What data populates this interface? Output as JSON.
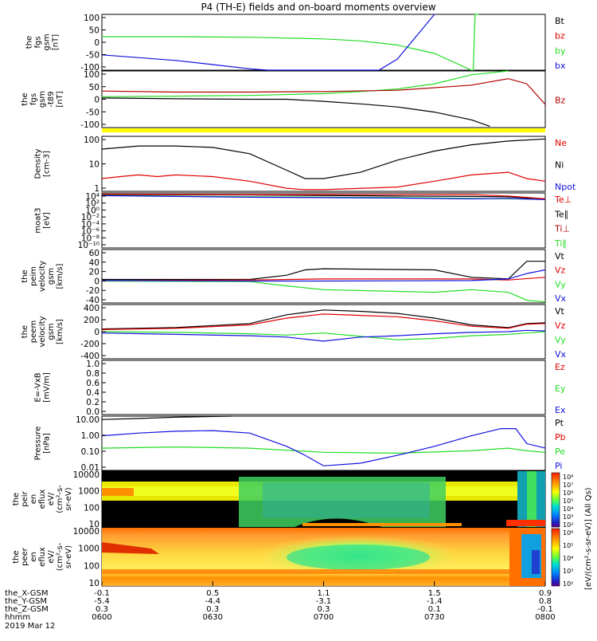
{
  "title": "P4 (TH-E) fields and on-board moments overview",
  "colors": {
    "black": "#000000",
    "red": "#e00000",
    "green": "#22dd22",
    "blue": "#1010e0",
    "darkred": "#b00000",
    "yellow": "#ffff00"
  },
  "chart_data": {
    "type": "line",
    "time_ticks": [
      "0600",
      "0630",
      "0700",
      "0730",
      "0800"
    ],
    "x_range_minutes": [
      0,
      120
    ],
    "panels": [
      {
        "id": "fgs",
        "ylabel": [
          "the",
          "fgs",
          "gsm",
          "[nT]"
        ],
        "yticks": [
          "100",
          "50",
          "0",
          "-50",
          "-100"
        ],
        "ylim": [
          -100,
          100
        ],
        "legend": [
          {
            "t": "Bt",
            "c": "black"
          },
          {
            "t": "bz",
            "c": "red"
          },
          {
            "t": "by",
            "c": "green"
          },
          {
            "t": "bx",
            "c": "blue"
          }
        ],
        "series": [
          {
            "name": "by",
            "color": "green",
            "x": [
              0,
              20,
              40,
              60,
              70,
              80,
              90,
              100,
              100.5,
              101,
              102
            ],
            "y": [
              20,
              20,
              18,
              12,
              5,
              -10,
              -40,
              -100,
              -100,
              100,
              100
            ]
          },
          {
            "name": "bx",
            "color": "blue",
            "x": [
              0,
              10,
              20,
              30,
              40,
              45,
              50,
              75,
              80,
              85,
              90
            ],
            "y": [
              -45,
              -55,
              -65,
              -80,
              -95,
              -100,
              -100,
              -100,
              -60,
              20,
              100
            ]
          }
        ]
      },
      {
        "id": "fgs_s",
        "ylabel": [
          "the",
          "fgs",
          "gsm",
          "-t89",
          "[nT]"
        ],
        "yticks": [
          "100",
          "50",
          "0",
          "-50",
          "-100"
        ],
        "ylim": [
          -120,
          100
        ],
        "legend": [
          {
            "t": "Bz",
            "c": "darkred"
          }
        ],
        "series": [
          {
            "name": "Bx",
            "color": "black",
            "x": [
              0,
              20,
              40,
              50,
              60,
              70,
              80,
              90,
              100,
              105
            ],
            "y": [
              -5,
              -8,
              -10,
              -10,
              -18,
              -28,
              -40,
              -60,
              -90,
              -115
            ]
          },
          {
            "name": "By",
            "color": "green",
            "x": [
              0,
              20,
              40,
              60,
              70,
              80,
              90,
              100,
              110
            ],
            "y": [
              0,
              2,
              5,
              12,
              20,
              30,
              50,
              85,
              100
            ]
          },
          {
            "name": "Bz",
            "color": "darkred",
            "x": [
              0,
              20,
              40,
              60,
              80,
              100,
              110,
              115,
              120
            ],
            "y": [
              22,
              18,
              18,
              20,
              25,
              45,
              70,
              50,
              -30
            ]
          }
        ]
      },
      {
        "id": "density",
        "ylabel": [
          "Density",
          "[cm-3]"
        ],
        "yticks": [
          "100",
          "10",
          "1"
        ],
        "log": true,
        "ylim": [
          0.5,
          200
        ],
        "legend": [
          {
            "t": "Ne",
            "c": "red"
          },
          {
            "t": "Ni",
            "c": "black"
          },
          {
            "t": "Npot",
            "c": "blue"
          }
        ],
        "series": [
          {
            "name": "Ni",
            "color": "black",
            "x": [
              0,
              10,
              20,
              30,
              40,
              50,
              55,
              60,
              70,
              80,
              90,
              100,
              110,
              120
            ],
            "y": [
              50,
              70,
              70,
              60,
              30,
              5,
              2,
              2,
              4,
              15,
              40,
              80,
              120,
              150
            ]
          },
          {
            "name": "Ne",
            "color": "red",
            "x": [
              0,
              5,
              10,
              15,
              20,
              30,
              40,
              50,
              55,
              60,
              80,
              90,
              100,
              110,
              115,
              120
            ],
            "y": [
              2,
              2.5,
              3,
              2.5,
              3,
              2.5,
              1.5,
              0.7,
              0.6,
              0.6,
              0.8,
              1.5,
              3,
              4,
              2,
              1.5
            ]
          }
        ]
      },
      {
        "id": "moat3",
        "ylabel": [
          "moat3",
          "[eV]"
        ],
        "yticks": [
          "10⁴",
          "10²",
          "10⁰",
          "10⁻²",
          "10⁻⁴",
          "10⁻⁶",
          "10⁻⁸",
          "10⁻¹⁰"
        ],
        "ylim": [
          -10,
          4
        ],
        "legend": [
          {
            "t": "Te⊥",
            "c": "red"
          },
          {
            "t": "Te∥",
            "c": "black"
          },
          {
            "t": "Ti⊥",
            "c": "darkred"
          },
          {
            "t": "Ti∥",
            "c": "green"
          }
        ],
        "series": [
          {
            "name": "Ti",
            "color": "black",
            "x": [
              0,
              40,
              80,
              100,
              110,
              120
            ],
            "y": [
              3.6,
              3.5,
              3.2,
              3.1,
              3.0,
              2.4
            ]
          },
          {
            "name": "Te",
            "color": "green",
            "x": [
              0,
              40,
              80,
              100,
              110,
              120
            ],
            "y": [
              3.4,
              3.0,
              2.8,
              2.6,
              2.5,
              2.4
            ]
          },
          {
            "name": "Tb",
            "color": "blue",
            "x": [
              0,
              40,
              80,
              100,
              110,
              120
            ],
            "y": [
              3.3,
              2.9,
              2.7,
              2.5,
              2.6,
              2.3
            ]
          },
          {
            "name": "Tr",
            "color": "red",
            "x": [
              0,
              40,
              80,
              100,
              110,
              120
            ],
            "y": [
              3.7,
              3.6,
              3.6,
              3.6,
              3.2,
              2.5
            ]
          }
        ]
      },
      {
        "id": "peim",
        "ylabel": [
          "the",
          "peim",
          "velocity",
          "gsm",
          "[km/s]"
        ],
        "yticks": [
          "60",
          "40",
          "20",
          "0",
          "-20",
          "-40"
        ],
        "ylim": [
          -40,
          60
        ],
        "legend": [
          {
            "t": "Vt",
            "c": "black"
          },
          {
            "t": "Vz",
            "c": "red"
          },
          {
            "t": "Vy",
            "c": "green"
          },
          {
            "t": "Vx",
            "c": "blue"
          }
        ],
        "series": [
          {
            "name": "Vt",
            "color": "black",
            "x": [
              0,
              40,
              50,
              55,
              60,
              90,
              100,
              110,
              115,
              120
            ],
            "y": [
              4,
              4,
              12,
              22,
              24,
              22,
              8,
              5,
              38,
              38
            ]
          },
          {
            "name": "Vz",
            "color": "red",
            "x": [
              0,
              40,
              60,
              100,
              110,
              120
            ],
            "y": [
              2,
              3,
              5,
              5,
              3,
              8
            ]
          },
          {
            "name": "Vy",
            "color": "green",
            "x": [
              0,
              40,
              50,
              60,
              90,
              100,
              110,
              115,
              120
            ],
            "y": [
              1,
              0,
              -8,
              -15,
              -20,
              -15,
              -20,
              -35,
              -38
            ]
          },
          {
            "name": "Vx",
            "color": "blue",
            "x": [
              0,
              40,
              60,
              100,
              110,
              115,
              120
            ],
            "y": [
              2,
              1,
              1,
              2,
              5,
              15,
              22
            ]
          }
        ]
      },
      {
        "id": "peem",
        "ylabel": [
          "the",
          "peem",
          "velocity",
          "gsm",
          "[km/s]"
        ],
        "yticks": [
          "400",
          "200",
          "0",
          "-200",
          "-400"
        ],
        "ylim": [
          -400,
          400
        ],
        "legend": [
          {
            "t": "Vt",
            "c": "black"
          },
          {
            "t": "Vz",
            "c": "red"
          },
          {
            "t": "Vy",
            "c": "green"
          },
          {
            "t": "Vx",
            "c": "blue"
          }
        ],
        "series": [
          {
            "name": "Vt",
            "color": "black",
            "x": [
              0,
              20,
              40,
              50,
              60,
              70,
              80,
              90,
              100,
              110,
              115,
              120
            ],
            "y": [
              40,
              60,
              120,
              250,
              320,
              300,
              270,
              200,
              100,
              60,
              120,
              130
            ]
          },
          {
            "name": "Vz",
            "color": "red",
            "x": [
              0,
              20,
              40,
              50,
              60,
              70,
              80,
              90,
              100,
              110,
              115,
              120
            ],
            "y": [
              30,
              50,
              100,
              200,
              260,
              240,
              220,
              160,
              80,
              50,
              110,
              120
            ]
          },
          {
            "name": "Vy",
            "color": "green",
            "x": [
              0,
              20,
              40,
              50,
              60,
              70,
              80,
              90,
              100,
              110,
              115,
              120
            ],
            "y": [
              0,
              -10,
              -30,
              -50,
              -20,
              -70,
              -120,
              -100,
              -60,
              -40,
              -20,
              0
            ]
          },
          {
            "name": "Vx",
            "color": "blue",
            "x": [
              0,
              20,
              40,
              50,
              60,
              70,
              80,
              90,
              100,
              110,
              115,
              120
            ],
            "y": [
              -20,
              -40,
              -60,
              -80,
              -140,
              -80,
              -60,
              -30,
              -10,
              0,
              20,
              10
            ]
          }
        ]
      },
      {
        "id": "efield",
        "ylabel": [
          "E=-VxB",
          "[mV/m]"
        ],
        "yticks": [
          "1.0",
          "0.8",
          "0.6",
          "0.4",
          "0.2",
          "0.0"
        ],
        "ylim": [
          0,
          1
        ],
        "legend": [
          {
            "t": "Ez",
            "c": "red"
          },
          {
            "t": "Ey",
            "c": "green"
          },
          {
            "t": "Ex",
            "c": "blue"
          }
        ],
        "series": []
      },
      {
        "id": "pressure",
        "ylabel": [
          "Pressure",
          "[nPa]"
        ],
        "yticks": [
          "10.00",
          "1.00",
          "0.10",
          "0.01"
        ],
        "log": true,
        "ylim": [
          0.005,
          20
        ],
        "legend": [
          {
            "t": "Pt",
            "c": "black"
          },
          {
            "t": "Pb",
            "c": "red"
          },
          {
            "t": "Pe",
            "c": "green"
          },
          {
            "t": "Pi",
            "c": "blue"
          }
        ],
        "series": [
          {
            "name": "Pt",
            "color": "black",
            "x": [
              0,
              10,
              20,
              30,
              35
            ],
            "y": [
              12,
              14,
              17,
              19,
              20
            ]
          },
          {
            "name": "Pe",
            "color": "green",
            "x": [
              0,
              20,
              40,
              60,
              80,
              100,
              110,
              115,
              120
            ],
            "y": [
              0.15,
              0.18,
              0.15,
              0.08,
              0.07,
              0.1,
              0.15,
              0.1,
              0.08
            ]
          },
          {
            "name": "Pi",
            "color": "blue",
            "x": [
              0,
              10,
              20,
              30,
              40,
              50,
              55,
              60,
              70,
              80,
              90,
              100,
              108,
              112,
              115,
              120
            ],
            "y": [
              1,
              1.5,
              2,
              2.2,
              1.5,
              0.2,
              0.05,
              0.01,
              0.015,
              0.05,
              0.2,
              1,
              3,
              3,
              0.3,
              0.15
            ]
          }
        ]
      },
      {
        "id": "peir",
        "ylabel": [
          "the",
          "peir",
          "en",
          "eflux",
          "eV/",
          "(cm²-s-",
          "sr-eV)"
        ],
        "yticks": [
          "10000",
          "1000",
          "100",
          "10"
        ],
        "type": "heatmap"
      },
      {
        "id": "peer",
        "ylabel": [
          "the",
          "peer",
          "en",
          "eflux",
          "eV/",
          "(cm²-s-",
          "sr-eV)"
        ],
        "yticks": [
          "10000",
          "1000",
          "100",
          "10"
        ],
        "type": "heatmap"
      }
    ],
    "colorbar": {
      "label": "[eV/(cm²-s-sr-eV)] (All Qs)",
      "ticks_top": [
        "10⁸",
        "10⁷",
        "10⁶",
        "10⁵",
        "10⁴",
        "10³",
        "10²"
      ],
      "ticks_bottom": [
        "10⁶",
        "10⁵",
        "10⁴",
        "10³",
        "10²"
      ]
    },
    "footer": {
      "rows": [
        {
          "label": "the_X-GSM",
          "values": [
            "-0.1",
            "0.5",
            "1.1",
            "1.5",
            "0.9"
          ]
        },
        {
          "label": "the_Y-GSM",
          "values": [
            "-5.4",
            "-4.4",
            "-3.1",
            "-1.4",
            "0.8"
          ]
        },
        {
          "label": "the_Z-GSM",
          "values": [
            "0.3",
            "0.3",
            "0.3",
            "0.1",
            "-0.1"
          ]
        },
        {
          "label": "hhmm",
          "values": [
            "0600",
            "0630",
            "0700",
            "0730",
            "0800"
          ]
        }
      ],
      "date": "2019 Mar 12"
    }
  }
}
